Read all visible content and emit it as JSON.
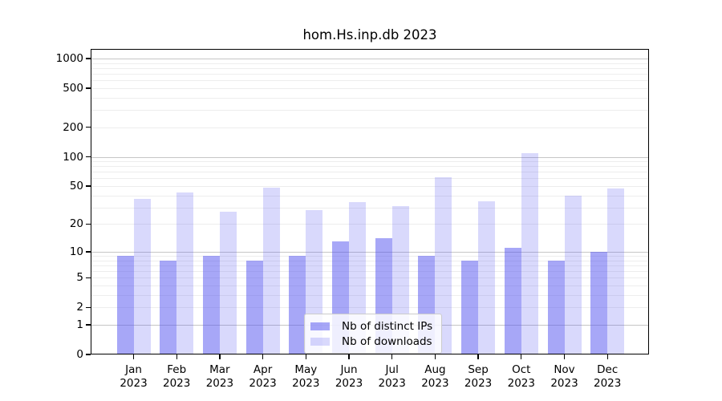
{
  "title": "hom.Hs.inp.db 2023",
  "chart_data": {
    "type": "bar",
    "title": "hom.Hs.inp.db 2023",
    "categories": [
      "Jan",
      "Feb",
      "Mar",
      "Apr",
      "May",
      "Jun",
      "Jul",
      "Aug",
      "Sep",
      "Oct",
      "Nov",
      "Dec"
    ],
    "year_label": "2023",
    "series": [
      {
        "name": "Nb of distinct IPs",
        "values": [
          9,
          8,
          9,
          8,
          9,
          13,
          14,
          9,
          8,
          11,
          8,
          10
        ],
        "fill": "rgba(80,80,240,0.50)",
        "approx_hex": "#a8a8f7"
      },
      {
        "name": "Nb of downloads",
        "values": [
          37,
          43,
          27,
          48,
          28,
          34,
          31,
          62,
          35,
          108,
          40,
          47
        ],
        "fill": "rgba(80,80,240,0.22)",
        "approx_hex": "#d9d9fb"
      }
    ],
    "xlabel": "",
    "ylabel": "",
    "y_axis": {
      "scale": "log1p",
      "ylim": [
        0,
        1252
      ],
      "tick_labels": [
        0,
        1,
        2,
        5,
        10,
        20,
        50,
        100,
        200,
        500,
        1000
      ],
      "major_gridlines": [
        1,
        10,
        100,
        1000
      ],
      "minor_gridlines": [
        2,
        3,
        4,
        5,
        6,
        7,
        8,
        9,
        20,
        30,
        40,
        50,
        60,
        70,
        80,
        90,
        200,
        300,
        400,
        500,
        600,
        700,
        800,
        900
      ]
    },
    "grid": true,
    "legend_position": "bottom-center",
    "colors": {
      "major_grid": "#c6c6c6",
      "minor_grid": "#ededed",
      "spine": "#000000",
      "legend_border": "#cccccc"
    }
  }
}
